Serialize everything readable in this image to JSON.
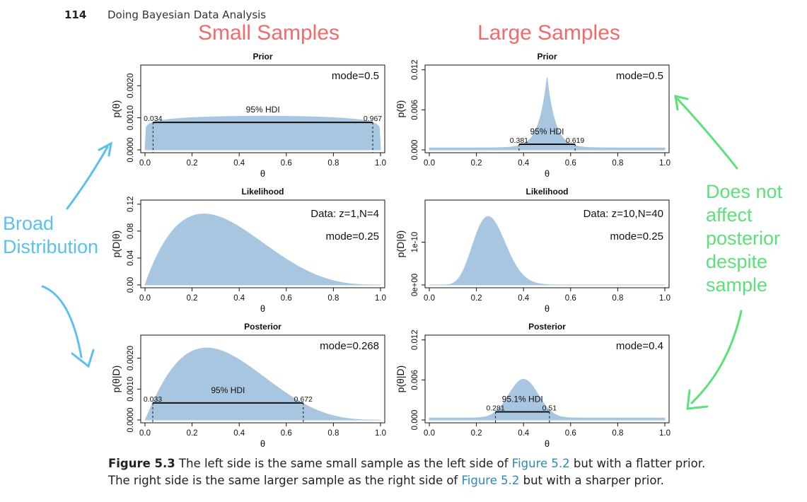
{
  "header": {
    "page_number": "114",
    "book_title": "Doing Bayesian Data Analysis"
  },
  "columns": {
    "left": "Small Samples",
    "right": "Large Samples"
  },
  "annotations": {
    "left_lines": [
      "Broad",
      "Distribution"
    ],
    "right_lines": [
      "Does not",
      "affect",
      "posterior",
      "despite",
      "sample"
    ],
    "left_color": "#5bc0f0",
    "right_color": "#5de07a"
  },
  "caption": {
    "label": "Figure 5.3",
    "t1": " The left side is the same small sample as the left side of ",
    "ref1": "Figure 5.2",
    "t2": " but with a flatter prior. The right side is the same larger sample as the right side of ",
    "ref2": "Figure 5.2",
    "t3": " but with a sharper prior."
  },
  "colors": {
    "fill": "#a9c6e0",
    "header_red": "#f06b6b",
    "link": "#2a88b8"
  },
  "chart_data": [
    {
      "id": "small-prior",
      "type": "area",
      "title": "Prior",
      "xlabel": "θ",
      "ylabel": "p(θ)",
      "xlim": [
        0,
        1
      ],
      "ylim": [
        0,
        0.0026
      ],
      "yticks": [
        "0.0000",
        "0.0010",
        "0.0020"
      ],
      "ytick_values": [
        0,
        0.001,
        0.002
      ],
      "xticks": [
        "0.0",
        "0.2",
        "0.4",
        "0.6",
        "0.8",
        "1.0"
      ],
      "curve": {
        "kind": "beta",
        "a": 1.1,
        "b": 1.1,
        "peak": 0.00105,
        "floor": 0
      },
      "mode_label": "mode=0.5",
      "hdi": {
        "label": "95% HDI",
        "low": 0.034,
        "high": 0.967,
        "low_label": "0.034",
        "high_label": "0.967"
      }
    },
    {
      "id": "large-prior",
      "type": "area",
      "title": "Prior",
      "xlabel": "θ",
      "ylabel": "p(θ)",
      "xlim": [
        0,
        1
      ],
      "ylim": [
        0,
        0.0125
      ],
      "yticks": [
        "0.000",
        "0.006",
        "0.012"
      ],
      "ytick_values": [
        0,
        0.006,
        0.012
      ],
      "xticks": [
        "0.0",
        "0.2",
        "0.4",
        "0.6",
        "0.8",
        "1.0"
      ],
      "curve": {
        "kind": "cusp",
        "center": 0.5,
        "scale": 0.035,
        "peak": 0.0108,
        "floor": 0.0003
      },
      "mode_label": "mode=0.5",
      "hdi": {
        "label": "95% HDI",
        "low": 0.381,
        "high": 0.619,
        "low_label": "0.381",
        "high_label": "0.619"
      }
    },
    {
      "id": "small-likelihood",
      "type": "area",
      "title": "Likelihood",
      "xlabel": "θ",
      "ylabel": "p(D|θ)",
      "xlim": [
        0,
        1
      ],
      "ylim": [
        0,
        0.124
      ],
      "yticks": [
        "0.00",
        "0.04",
        "0.08",
        "0.12"
      ],
      "ytick_values": [
        0,
        0.04,
        0.08,
        0.12
      ],
      "xticks": [
        "0.0",
        "0.2",
        "0.4",
        "0.6",
        "0.8",
        "1.0"
      ],
      "curve": {
        "kind": "beta",
        "a": 2,
        "b": 4,
        "peak": 0.1055,
        "floor": 0
      },
      "data_label": "Data: z=1,N=4",
      "mode_label": "mode=0.25",
      "hdi": null
    },
    {
      "id": "large-likelihood",
      "type": "area",
      "title": "Likelihood",
      "xlabel": "θ",
      "ylabel": "p(D|θ)",
      "xlim": [
        0,
        1
      ],
      "ylim": [
        0,
        1.95e-10
      ],
      "yticks": [
        "0e+00",
        "1e-10"
      ],
      "ytick_values": [
        0,
        1e-10
      ],
      "xticks": [
        "0.0",
        "0.2",
        "0.4",
        "0.6",
        "0.8",
        "1.0"
      ],
      "curve": {
        "kind": "beta",
        "a": 11,
        "b": 31,
        "peak": 1.6e-10,
        "floor": 0
      },
      "data_label": "Data: z=10,N=40",
      "mode_label": "mode=0.25",
      "hdi": null
    },
    {
      "id": "small-posterior",
      "type": "area",
      "title": "Posterior",
      "xlabel": "θ",
      "ylabel": "p(θ|D)",
      "xlim": [
        0,
        1
      ],
      "ylim": [
        0,
        0.0027
      ],
      "yticks": [
        "0.0000",
        "0.0010",
        "0.0020"
      ],
      "ytick_values": [
        0,
        0.001,
        0.002
      ],
      "xticks": [
        "0.0",
        "0.2",
        "0.4",
        "0.6",
        "0.8",
        "1.0"
      ],
      "curve": {
        "kind": "beta",
        "a": 2.1,
        "b": 4.1,
        "peak": 0.00233,
        "floor": 0
      },
      "mode_label": "mode=0.268",
      "hdi": {
        "label": "95% HDI",
        "low": 0.033,
        "high": 0.672,
        "low_label": "0.033",
        "high_label": "0.672"
      }
    },
    {
      "id": "large-posterior",
      "type": "area",
      "title": "Posterior",
      "xlabel": "θ",
      "ylabel": "p(θ|D)",
      "xlim": [
        0,
        1
      ],
      "ylim": [
        0,
        0.0125
      ],
      "yticks": [
        "0.000",
        "0.006",
        "0.012"
      ],
      "ytick_values": [
        0,
        0.006,
        0.012
      ],
      "xticks": [
        "0.0",
        "0.2",
        "0.4",
        "0.6",
        "0.8",
        "1.0"
      ],
      "curve": {
        "kind": "gauss",
        "center": 0.4,
        "sd": 0.062,
        "peak": 0.0061,
        "floor": 0.0003
      },
      "mode_label": "mode=0.4",
      "hdi": {
        "label": "95.1% HDI",
        "low": 0.281,
        "high": 0.51,
        "low_label": "0.281",
        "high_label": "0.51"
      }
    }
  ]
}
